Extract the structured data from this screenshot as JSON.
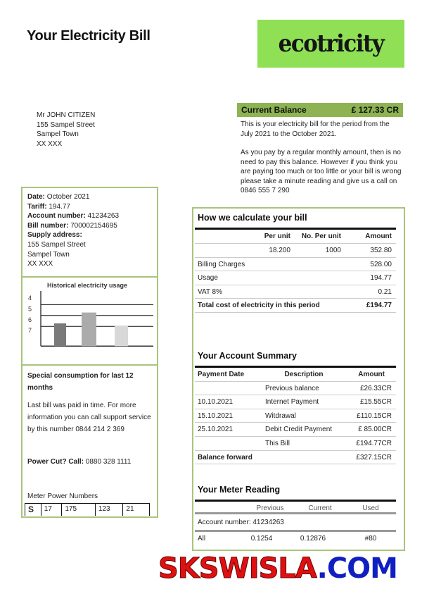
{
  "header": {
    "title": "Your Electricity Bill",
    "logo": "ecotricity",
    "logo_color": "#8fe055"
  },
  "address": [
    "Mr JOHN CITIZEN",
    "155 Sampel Street",
    "Sampel Town",
    "XX XXX"
  ],
  "balance": {
    "label": "Current Balance",
    "amount": "£ 127.33 CR",
    "color": "#8db352",
    "text1": "This is your electricity bill for the period from the July 2021 to the October 2021.",
    "text2": "As you pay by a regular monthly amount, then is no need to pay this balance. However if you think you are paying too much or too little or your bill is wrong please take a minute reading and give us a call on 0846 555 7 290"
  },
  "info": {
    "date_label": "Date:",
    "date": "October 2021",
    "tariff_label": "Tariff:",
    "tariff": "194.77",
    "account_label": "Account number:",
    "account": "41234263",
    "bill_label": "Bill number:",
    "bill": "700002154695",
    "supply_label": "Supply address:",
    "supply": [
      "155 Sampel Street",
      "Sampel Town",
      "XX XXX"
    ]
  },
  "chart_data": {
    "type": "bar",
    "title": "Historical electricity usage",
    "ytick_labels": [
      "4",
      "5",
      "6",
      "7"
    ],
    "ylim": [
      4,
      8.5
    ],
    "y_inverted": true,
    "grid": true,
    "values": [
      6.4,
      5.4,
      6.6
    ],
    "colors": [
      "#7a7a7a",
      "#ababab",
      "#d8d8d8"
    ]
  },
  "special": {
    "title": "Special consumption for last 12 months",
    "text": "Last bill was paid in time. For more information you can call support service by this number 0844 214 2 369",
    "powercut_label": "Power Cut? Call:",
    "powercut": "0880 328 1111",
    "meter_label": "Meter Power Numbers",
    "meter": [
      "S",
      "17",
      "175",
      "123",
      "21"
    ]
  },
  "calc": {
    "title": "How we calculate your bill",
    "cols": [
      "Per unit",
      "No. Per unit",
      "Amount"
    ],
    "rows": [
      [
        "",
        "18.200",
        "1000",
        "352.80"
      ],
      [
        "Billing Charges",
        "",
        "",
        "528.00"
      ],
      [
        "Usage",
        "",
        "",
        "194.77"
      ],
      [
        "VAT 8%",
        "",
        "",
        "0.21"
      ]
    ],
    "total_label": "Total cost of electricity in this period",
    "total": "£194.77"
  },
  "summary": {
    "title": "Your Account Summary",
    "cols": [
      "Payment Date",
      "Description",
      "Amount"
    ],
    "rows": [
      [
        "",
        "Previous balance",
        "£26.33CR"
      ],
      [
        "10.10.2021",
        "Internet Payment",
        "£15.55CR"
      ],
      [
        "15.10.2021",
        "Witdrawal",
        "£110.15CR"
      ],
      [
        "25.10.2021",
        "Debit Credit Payment",
        "£ 85.00CR"
      ],
      [
        "",
        "This Bill",
        "£194.77CR"
      ]
    ],
    "forward_label": "Balance  forward",
    "forward": "£327.15CR"
  },
  "meter": {
    "title": "Your Meter Reading",
    "cols": [
      "Previous",
      "Current",
      "Used"
    ],
    "account": "Account number: 41234263",
    "row": [
      "All",
      "0.1254",
      "0.12876",
      "#80"
    ]
  },
  "watermark": {
    "red": "SKSWISLA",
    "blue": ".COM"
  }
}
